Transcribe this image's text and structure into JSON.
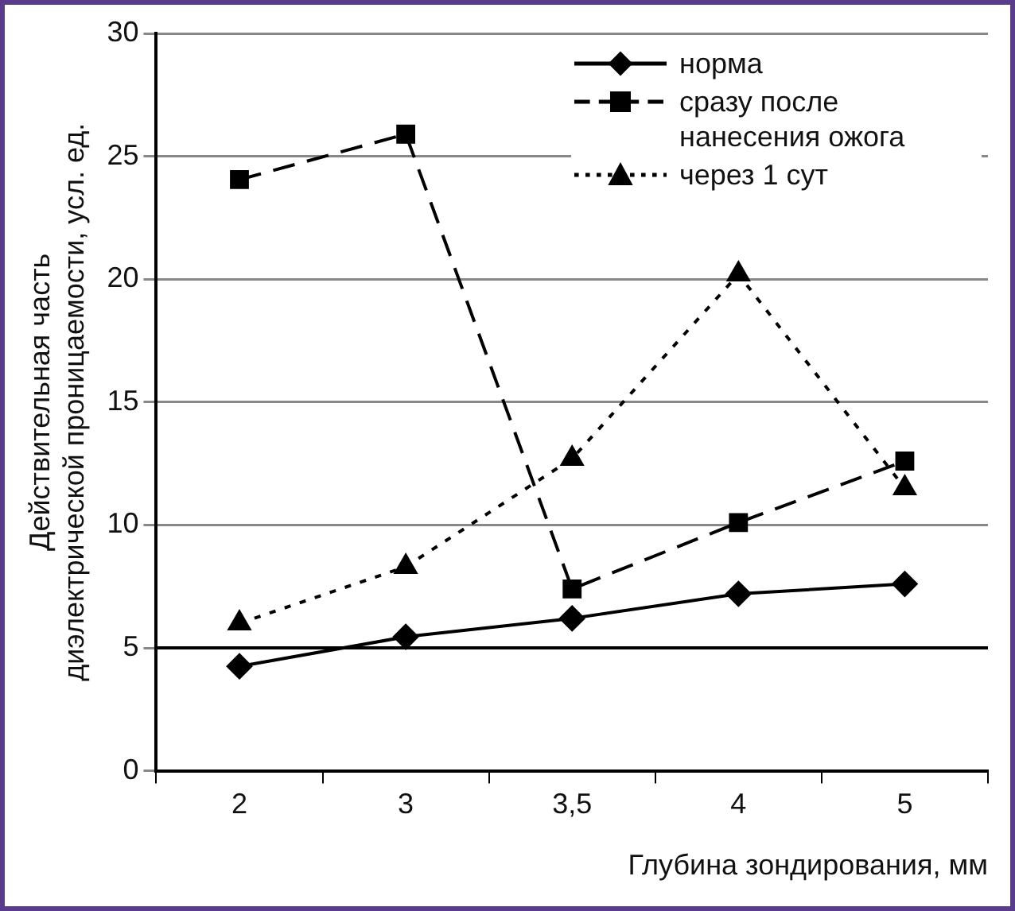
{
  "chart_data": {
    "type": "line",
    "xlabel": "Глубина зондирования, мм",
    "ylabel": "Действительная часть\nдиэлектрической проницаемости, усл. ед.",
    "categories": [
      "2",
      "3",
      "3,5",
      "4",
      "5"
    ],
    "series": [
      {
        "name": "норма",
        "color": "#000000",
        "marker": "diamond",
        "line_style": "solid",
        "values": [
          4.25,
          5.45,
          6.2,
          7.2,
          7.6
        ]
      },
      {
        "name": "сразу после нанесения ожога",
        "color": "#000000",
        "marker": "square",
        "line_style": "dashed",
        "values": [
          24.05,
          25.9,
          7.4,
          10.1,
          12.6
        ]
      },
      {
        "name": "через 1 сут",
        "color": "#000000",
        "marker": "triangle",
        "line_style": "dotted",
        "values": [
          6.0,
          8.3,
          12.7,
          20.2,
          11.5
        ]
      }
    ],
    "ref_lines": [
      {
        "axis": "y",
        "value": 5,
        "color": "#000000"
      }
    ],
    "ylim": [
      0,
      30
    ],
    "yticks": [
      0,
      5,
      10,
      15,
      20,
      25,
      30
    ],
    "grid": "y",
    "legend": "top right"
  }
}
